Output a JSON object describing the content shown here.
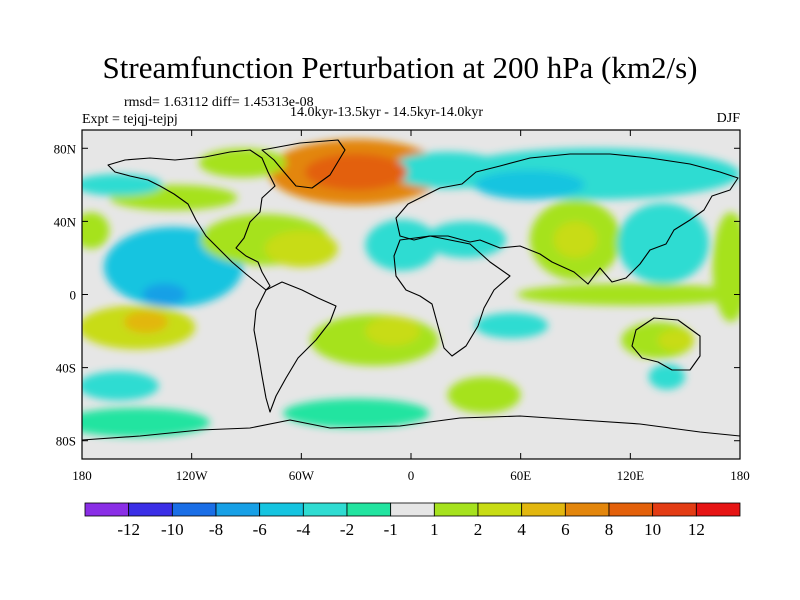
{
  "header": {
    "title": "Streamfunction Perturbation at 200 hPa (km2/s)",
    "stats": "rmsd= 1.63112 diff= 1.45313e-08",
    "expt": "Expt = tejqj-tejpj",
    "period": "14.0kyr-13.5kyr - 14.5kyr-14.0kyr",
    "season": "DJF"
  },
  "chart_data": {
    "type": "heatmap",
    "title": "Streamfunction Perturbation at 200 hPa (km2/s)",
    "xlabel": "",
    "ylabel": "",
    "xlim": [
      -180,
      180
    ],
    "ylim": [
      -90,
      90
    ],
    "x_ticks": [
      {
        "value": -180,
        "label": "180"
      },
      {
        "value": -120,
        "label": "120W"
      },
      {
        "value": -60,
        "label": "60W"
      },
      {
        "value": 0,
        "label": "0"
      },
      {
        "value": 60,
        "label": "60E"
      },
      {
        "value": 120,
        "label": "120E"
      },
      {
        "value": 180,
        "label": "180"
      }
    ],
    "y_ticks": [
      {
        "value": 80,
        "label": "80N"
      },
      {
        "value": 40,
        "label": "40N"
      },
      {
        "value": 0,
        "label": "0"
      },
      {
        "value": -40,
        "label": "40S"
      },
      {
        "value": -80,
        "label": "80S"
      }
    ],
    "colorbar": {
      "labels": [
        "-12",
        "-10",
        "-8",
        "-6",
        "-4",
        "-2",
        "-1",
        "1",
        "2",
        "4",
        "6",
        "8",
        "10",
        "12"
      ],
      "colors": [
        "#8a2ee6",
        "#3b2ee6",
        "#1a6ee6",
        "#17a0e6",
        "#15c4e0",
        "#2fdcd2",
        "#22e4a0",
        "#e6e6e6",
        "#a6e21e",
        "#c8dc14",
        "#e2b70f",
        "#e3860c",
        "#e3600a",
        "#e33c14",
        "#e61414"
      ]
    },
    "anomaly_regions": [
      {
        "lon": -30,
        "lat": 67,
        "rlon": 48,
        "rlat": 18,
        "value": 7
      },
      {
        "lon": -30,
        "lat": 67,
        "rlon": 28,
        "rlat": 10,
        "value": 9
      },
      {
        "lon": -92,
        "lat": 72,
        "rlon": 24,
        "rlat": 8,
        "value": 2
      },
      {
        "lon": -160,
        "lat": 60,
        "rlon": 24,
        "rlat": 6,
        "value": -2
      },
      {
        "lon": -130,
        "lat": 53,
        "rlon": 35,
        "rlat": 7,
        "value": 2
      },
      {
        "lon": 20,
        "lat": 68,
        "rlon": 32,
        "rlat": 10,
        "value": -2
      },
      {
        "lon": 100,
        "lat": 66,
        "rlon": 80,
        "rlat": 14,
        "value": -3
      },
      {
        "lon": 65,
        "lat": 60,
        "rlon": 30,
        "rlat": 8,
        "value": -5
      },
      {
        "lon": -175,
        "lat": 35,
        "rlon": 10,
        "rlat": 10,
        "value": 2
      },
      {
        "lon": -130,
        "lat": 15,
        "rlon": 38,
        "rlat": 22,
        "value": -4
      },
      {
        "lon": -135,
        "lat": 0,
        "rlon": 12,
        "rlat": 6,
        "value": -6
      },
      {
        "lon": -80,
        "lat": 30,
        "rlon": 35,
        "rlat": 14,
        "value": 2
      },
      {
        "lon": -60,
        "lat": 25,
        "rlon": 20,
        "rlat": 10,
        "value": 4
      },
      {
        "lon": -5,
        "lat": 27,
        "rlon": 20,
        "rlat": 14,
        "value": -2
      },
      {
        "lon": 30,
        "lat": 30,
        "rlon": 22,
        "rlat": 10,
        "value": -2
      },
      {
        "lon": 90,
        "lat": 30,
        "rlon": 25,
        "rlat": 22,
        "value": 2
      },
      {
        "lon": 90,
        "lat": 30,
        "rlon": 12,
        "rlat": 10,
        "value": 3
      },
      {
        "lon": 138,
        "lat": 28,
        "rlon": 25,
        "rlat": 22,
        "value": -3
      },
      {
        "lon": 120,
        "lat": 0,
        "rlon": 62,
        "rlat": 6,
        "value": 2
      },
      {
        "lon": 175,
        "lat": 15,
        "rlon": 10,
        "rlat": 30,
        "value": 2
      },
      {
        "lon": -150,
        "lat": -18,
        "rlon": 32,
        "rlat": 12,
        "value": 3
      },
      {
        "lon": -145,
        "lat": -15,
        "rlon": 12,
        "rlat": 6,
        "value": 5
      },
      {
        "lon": -160,
        "lat": -50,
        "rlon": 22,
        "rlat": 8,
        "value": -2
      },
      {
        "lon": -20,
        "lat": -25,
        "rlon": 35,
        "rlat": 14,
        "value": 2
      },
      {
        "lon": -10,
        "lat": -20,
        "rlon": 15,
        "rlat": 8,
        "value": 4
      },
      {
        "lon": 55,
        "lat": -17,
        "rlon": 20,
        "rlat": 7,
        "value": -2
      },
      {
        "lon": 135,
        "lat": -25,
        "rlon": 20,
        "rlat": 10,
        "value": 2
      },
      {
        "lon": 145,
        "lat": -25,
        "rlon": 10,
        "rlat": 6,
        "value": 3
      },
      {
        "lon": 140,
        "lat": -45,
        "rlon": 10,
        "rlat": 7,
        "value": -2
      },
      {
        "lon": 40,
        "lat": -55,
        "rlon": 20,
        "rlat": 10,
        "value": 2
      },
      {
        "lon": -150,
        "lat": -70,
        "rlon": 40,
        "rlat": 8,
        "value": -1
      },
      {
        "lon": -30,
        "lat": -65,
        "rlon": 40,
        "rlat": 8,
        "value": -1
      }
    ]
  }
}
